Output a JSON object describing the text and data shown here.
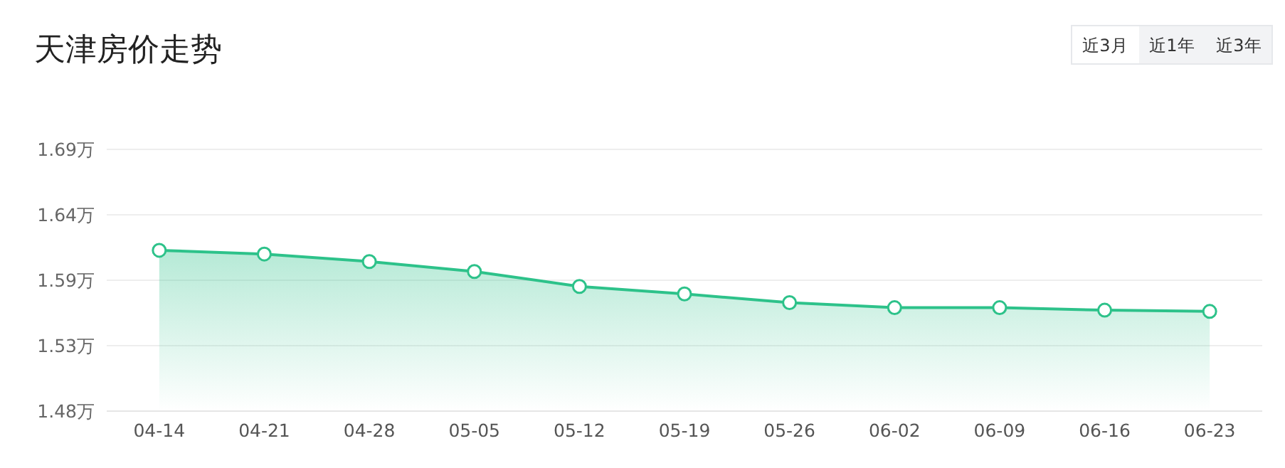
{
  "chart_data": {
    "type": "area",
    "title": "天津房价走势",
    "annotations": [
      "近3月",
      "近1年",
      "近3年"
    ],
    "categories": [
      "04-14",
      "04-21",
      "04-28",
      "05-05",
      "05-12",
      "05-19",
      "05-26",
      "06-02",
      "06-09",
      "06-16",
      "06-23"
    ],
    "series": [
      {
        "color": "#2dc28a",
        "values": [
          1.609,
          1.606,
          1.6,
          1.592,
          1.58,
          1.574,
          1.567,
          1.563,
          1.563,
          1.561,
          1.56
        ]
      }
    ],
    "ylim": [
      1.48,
      1.69
    ],
    "yticks": [
      {
        "value": 1.48,
        "label": "1.48万"
      },
      {
        "value": 1.5325,
        "label": "1.53万"
      },
      {
        "value": 1.585,
        "label": "1.59万"
      },
      {
        "value": 1.6375,
        "label": "1.64万"
      },
      {
        "value": 1.69,
        "label": "1.69万"
      }
    ],
    "grid": "y",
    "marker": "circle",
    "line_style": "solid"
  }
}
